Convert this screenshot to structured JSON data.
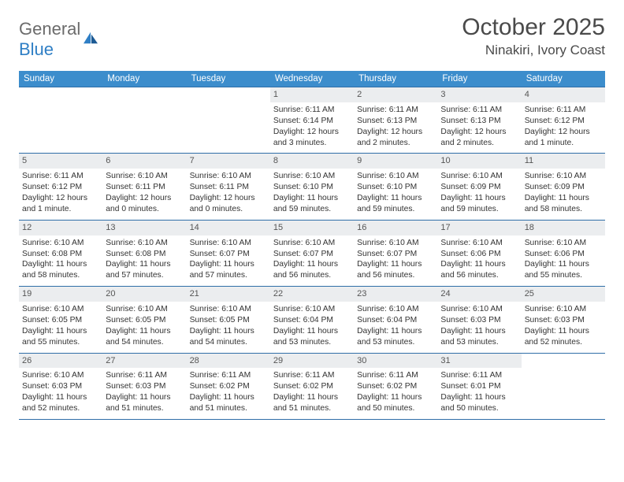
{
  "logo": {
    "word1": "General",
    "word2": "Blue"
  },
  "title": "October 2025",
  "location": "Ninakiri, Ivory Coast",
  "colors": {
    "header_bg": "#3c8dcc",
    "header_text": "#ffffff",
    "week_border": "#2f6ea8",
    "daynum_bg": "#ebedef",
    "body_text": "#333333",
    "title_text": "#4a4a4a",
    "logo_gray": "#6b6b6b",
    "logo_blue": "#2f7fc5"
  },
  "days_of_week": [
    "Sunday",
    "Monday",
    "Tuesday",
    "Wednesday",
    "Thursday",
    "Friday",
    "Saturday"
  ],
  "weeks": [
    [
      {
        "n": "",
        "empty": true
      },
      {
        "n": "",
        "empty": true
      },
      {
        "n": "",
        "empty": true
      },
      {
        "n": "1",
        "sr": "Sunrise: 6:11 AM",
        "ss": "Sunset: 6:14 PM",
        "dl": "Daylight: 12 hours and 3 minutes."
      },
      {
        "n": "2",
        "sr": "Sunrise: 6:11 AM",
        "ss": "Sunset: 6:13 PM",
        "dl": "Daylight: 12 hours and 2 minutes."
      },
      {
        "n": "3",
        "sr": "Sunrise: 6:11 AM",
        "ss": "Sunset: 6:13 PM",
        "dl": "Daylight: 12 hours and 2 minutes."
      },
      {
        "n": "4",
        "sr": "Sunrise: 6:11 AM",
        "ss": "Sunset: 6:12 PM",
        "dl": "Daylight: 12 hours and 1 minute."
      }
    ],
    [
      {
        "n": "5",
        "sr": "Sunrise: 6:11 AM",
        "ss": "Sunset: 6:12 PM",
        "dl": "Daylight: 12 hours and 1 minute."
      },
      {
        "n": "6",
        "sr": "Sunrise: 6:10 AM",
        "ss": "Sunset: 6:11 PM",
        "dl": "Daylight: 12 hours and 0 minutes."
      },
      {
        "n": "7",
        "sr": "Sunrise: 6:10 AM",
        "ss": "Sunset: 6:11 PM",
        "dl": "Daylight: 12 hours and 0 minutes."
      },
      {
        "n": "8",
        "sr": "Sunrise: 6:10 AM",
        "ss": "Sunset: 6:10 PM",
        "dl": "Daylight: 11 hours and 59 minutes."
      },
      {
        "n": "9",
        "sr": "Sunrise: 6:10 AM",
        "ss": "Sunset: 6:10 PM",
        "dl": "Daylight: 11 hours and 59 minutes."
      },
      {
        "n": "10",
        "sr": "Sunrise: 6:10 AM",
        "ss": "Sunset: 6:09 PM",
        "dl": "Daylight: 11 hours and 59 minutes."
      },
      {
        "n": "11",
        "sr": "Sunrise: 6:10 AM",
        "ss": "Sunset: 6:09 PM",
        "dl": "Daylight: 11 hours and 58 minutes."
      }
    ],
    [
      {
        "n": "12",
        "sr": "Sunrise: 6:10 AM",
        "ss": "Sunset: 6:08 PM",
        "dl": "Daylight: 11 hours and 58 minutes."
      },
      {
        "n": "13",
        "sr": "Sunrise: 6:10 AM",
        "ss": "Sunset: 6:08 PM",
        "dl": "Daylight: 11 hours and 57 minutes."
      },
      {
        "n": "14",
        "sr": "Sunrise: 6:10 AM",
        "ss": "Sunset: 6:07 PM",
        "dl": "Daylight: 11 hours and 57 minutes."
      },
      {
        "n": "15",
        "sr": "Sunrise: 6:10 AM",
        "ss": "Sunset: 6:07 PM",
        "dl": "Daylight: 11 hours and 56 minutes."
      },
      {
        "n": "16",
        "sr": "Sunrise: 6:10 AM",
        "ss": "Sunset: 6:07 PM",
        "dl": "Daylight: 11 hours and 56 minutes."
      },
      {
        "n": "17",
        "sr": "Sunrise: 6:10 AM",
        "ss": "Sunset: 6:06 PM",
        "dl": "Daylight: 11 hours and 56 minutes."
      },
      {
        "n": "18",
        "sr": "Sunrise: 6:10 AM",
        "ss": "Sunset: 6:06 PM",
        "dl": "Daylight: 11 hours and 55 minutes."
      }
    ],
    [
      {
        "n": "19",
        "sr": "Sunrise: 6:10 AM",
        "ss": "Sunset: 6:05 PM",
        "dl": "Daylight: 11 hours and 55 minutes."
      },
      {
        "n": "20",
        "sr": "Sunrise: 6:10 AM",
        "ss": "Sunset: 6:05 PM",
        "dl": "Daylight: 11 hours and 54 minutes."
      },
      {
        "n": "21",
        "sr": "Sunrise: 6:10 AM",
        "ss": "Sunset: 6:05 PM",
        "dl": "Daylight: 11 hours and 54 minutes."
      },
      {
        "n": "22",
        "sr": "Sunrise: 6:10 AM",
        "ss": "Sunset: 6:04 PM",
        "dl": "Daylight: 11 hours and 53 minutes."
      },
      {
        "n": "23",
        "sr": "Sunrise: 6:10 AM",
        "ss": "Sunset: 6:04 PM",
        "dl": "Daylight: 11 hours and 53 minutes."
      },
      {
        "n": "24",
        "sr": "Sunrise: 6:10 AM",
        "ss": "Sunset: 6:03 PM",
        "dl": "Daylight: 11 hours and 53 minutes."
      },
      {
        "n": "25",
        "sr": "Sunrise: 6:10 AM",
        "ss": "Sunset: 6:03 PM",
        "dl": "Daylight: 11 hours and 52 minutes."
      }
    ],
    [
      {
        "n": "26",
        "sr": "Sunrise: 6:10 AM",
        "ss": "Sunset: 6:03 PM",
        "dl": "Daylight: 11 hours and 52 minutes."
      },
      {
        "n": "27",
        "sr": "Sunrise: 6:11 AM",
        "ss": "Sunset: 6:03 PM",
        "dl": "Daylight: 11 hours and 51 minutes."
      },
      {
        "n": "28",
        "sr": "Sunrise: 6:11 AM",
        "ss": "Sunset: 6:02 PM",
        "dl": "Daylight: 11 hours and 51 minutes."
      },
      {
        "n": "29",
        "sr": "Sunrise: 6:11 AM",
        "ss": "Sunset: 6:02 PM",
        "dl": "Daylight: 11 hours and 51 minutes."
      },
      {
        "n": "30",
        "sr": "Sunrise: 6:11 AM",
        "ss": "Sunset: 6:02 PM",
        "dl": "Daylight: 11 hours and 50 minutes."
      },
      {
        "n": "31",
        "sr": "Sunrise: 6:11 AM",
        "ss": "Sunset: 6:01 PM",
        "dl": "Daylight: 11 hours and 50 minutes."
      },
      {
        "n": "",
        "empty": true
      }
    ]
  ]
}
